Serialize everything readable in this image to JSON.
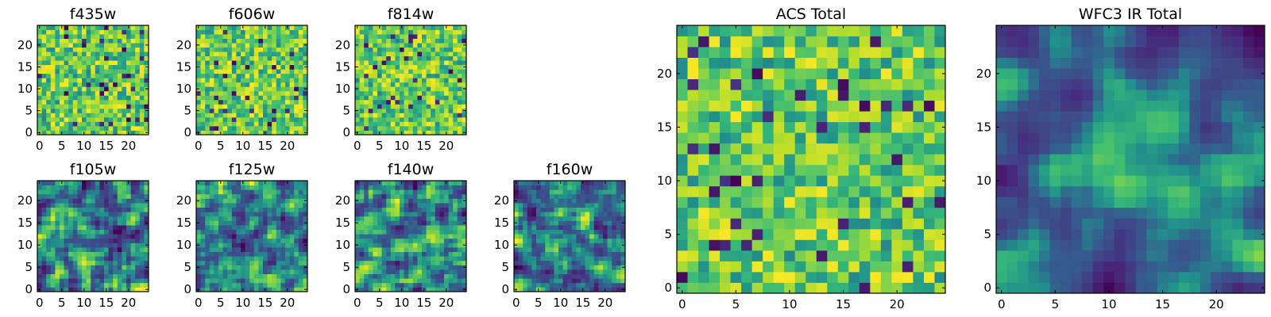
{
  "chart_data": [
    {
      "type": "heatmap",
      "title": "f435w",
      "grid": [
        25,
        25
      ],
      "colormap": "viridis",
      "x_ticks": [
        0,
        5,
        10,
        15,
        20
      ],
      "y_ticks": [
        0,
        5,
        10,
        15,
        20
      ],
      "xlim": [
        -0.5,
        24.5
      ],
      "ylim": [
        -0.5,
        24.5
      ],
      "pattern": "noise"
    },
    {
      "type": "heatmap",
      "title": "f606w",
      "grid": [
        25,
        25
      ],
      "colormap": "viridis",
      "x_ticks": [
        0,
        5,
        10,
        15,
        20
      ],
      "y_ticks": [
        0,
        5,
        10,
        15,
        20
      ],
      "xlim": [
        -0.5,
        24.5
      ],
      "ylim": [
        -0.5,
        24.5
      ],
      "pattern": "noise"
    },
    {
      "type": "heatmap",
      "title": "f814w",
      "grid": [
        25,
        25
      ],
      "colormap": "viridis",
      "x_ticks": [
        0,
        5,
        10,
        15,
        20
      ],
      "y_ticks": [
        0,
        5,
        10,
        15,
        20
      ],
      "xlim": [
        -0.5,
        24.5
      ],
      "ylim": [
        -0.5,
        24.5
      ],
      "pattern": "noise"
    },
    {
      "type": "heatmap",
      "title": "f105w",
      "grid": [
        25,
        25
      ],
      "colormap": "viridis",
      "x_ticks": [
        0,
        5,
        10,
        15,
        20
      ],
      "y_ticks": [
        0,
        5,
        10,
        15,
        20
      ],
      "xlim": [
        -0.5,
        24.5
      ],
      "ylim": [
        -0.5,
        24.5
      ],
      "pattern": "smooth"
    },
    {
      "type": "heatmap",
      "title": "f125w",
      "grid": [
        25,
        25
      ],
      "colormap": "viridis",
      "x_ticks": [
        0,
        5,
        10,
        15,
        20
      ],
      "y_ticks": [
        0,
        5,
        10,
        15,
        20
      ],
      "xlim": [
        -0.5,
        24.5
      ],
      "ylim": [
        -0.5,
        24.5
      ],
      "pattern": "smooth"
    },
    {
      "type": "heatmap",
      "title": "f140w",
      "grid": [
        25,
        25
      ],
      "colormap": "viridis",
      "x_ticks": [
        0,
        5,
        10,
        15,
        20
      ],
      "y_ticks": [
        0,
        5,
        10,
        15,
        20
      ],
      "xlim": [
        -0.5,
        24.5
      ],
      "ylim": [
        -0.5,
        24.5
      ],
      "pattern": "smooth"
    },
    {
      "type": "heatmap",
      "title": "f160w",
      "grid": [
        25,
        25
      ],
      "colormap": "viridis",
      "x_ticks": [
        0,
        5,
        10,
        15,
        20
      ],
      "y_ticks": [
        0,
        5,
        10,
        15,
        20
      ],
      "xlim": [
        -0.5,
        24.5
      ],
      "ylim": [
        -0.5,
        24.5
      ],
      "pattern": "smooth"
    },
    {
      "type": "heatmap",
      "title": "ACS Total",
      "grid": [
        25,
        25
      ],
      "colormap": "viridis",
      "x_ticks": [
        0,
        5,
        10,
        15,
        20
      ],
      "y_ticks": [
        0,
        5,
        10,
        15,
        20
      ],
      "xlim": [
        -0.5,
        24.5
      ],
      "ylim": [
        -0.5,
        24.5
      ],
      "pattern": "noise"
    },
    {
      "type": "heatmap",
      "title": "WFC3 IR Total",
      "grid": [
        25,
        25
      ],
      "colormap": "viridis",
      "x_ticks": [
        0,
        5,
        10,
        15,
        20
      ],
      "y_ticks": [
        0,
        5,
        10,
        15,
        20
      ],
      "xlim": [
        -0.5,
        24.5
      ],
      "ylim": [
        -0.5,
        24.5
      ],
      "pattern": "smooth-peak"
    }
  ]
}
